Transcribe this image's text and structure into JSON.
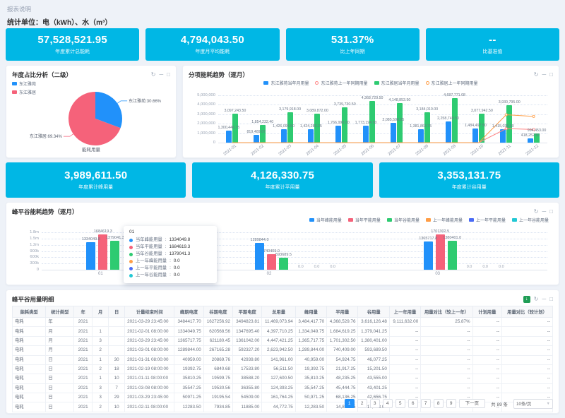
{
  "header": {
    "note": "报表说明",
    "unit_line": "统计单位：电（kWh）、水（m³）"
  },
  "icons": {
    "refresh": "↻",
    "collapse": "─",
    "fullscreen": "□",
    "export": "↓"
  },
  "kpi_top": [
    {
      "value": "57,528,521.95",
      "label": "年度累计总能耗"
    },
    {
      "value": "4,794,043.50",
      "label": "年度月平均能耗"
    },
    {
      "value": "531.37%",
      "label": "比上年同期"
    },
    {
      "value": "--",
      "label": "比基准值"
    }
  ],
  "kpi_mid": [
    {
      "value": "3,989,611.50",
      "label": "年度累计峰用量"
    },
    {
      "value": "4,126,330.75",
      "label": "年度累计平用量"
    },
    {
      "value": "3,353,131.75",
      "label": "年度累计谷用量"
    }
  ],
  "panels": {
    "pie": {
      "title": "年度占比分析（二级）"
    },
    "monthly": {
      "title": "分项能耗趋势（逐月）"
    },
    "fpg": {
      "title": "峰平谷能耗趋势（逐月）"
    },
    "detail": {
      "title": "峰平谷用量明细"
    }
  },
  "colors": {
    "cyan": "#00b7e5",
    "blue": "#2191fa",
    "green": "#2ecb71",
    "pink": "#f5627a",
    "orange": "#ff9d45",
    "redline": "#ff8585",
    "royal": "#4a6bf5",
    "teal": "#22c8d4"
  },
  "chart_data": [
    {
      "type": "pie",
      "title": "年度占比分析（二级）",
      "legend_position": "top-left",
      "series": [
        {
          "name": "东江雅苑",
          "value_pct": 30.66,
          "color": "#2191fa",
          "callout_label": "东江雅苑:30.66%"
        },
        {
          "name": "东江雅居",
          "value_pct": 69.34,
          "color": "#f5627a",
          "callout_label": "东江雅居:69.34%"
        }
      ],
      "bottom_label": "能耗用量"
    },
    {
      "type": "bar",
      "title": "分项能耗趋势（逐月）",
      "categories": [
        "2021-01",
        "2021-02",
        "2021-03",
        "2021-04",
        "2021-05",
        "2021-06",
        "2021-07",
        "2021-08",
        "2021-09",
        "2021-10",
        "2021-11",
        "2021-12"
      ],
      "ylim": [
        0,
        5000000
      ],
      "yticks": [
        "5,000,000",
        "4,000,000",
        "3,000,000",
        "2,000,000",
        "1,000,000",
        "0"
      ],
      "grid": true,
      "legend_position": "top-center",
      "series": [
        {
          "name": "东江雅苑当年月用量",
          "kind": "bar",
          "color": "#2191fa",
          "values": [
            1300446.75,
            819489.07,
            1426095.5,
            1424283.25,
            1766990.0,
            1773194.5,
            2085598.25,
            1381863.75,
            2258749.5,
            1484497.5,
            1415035.5,
            418252.5
          ],
          "labels": [
            "1,300,446.75",
            "819,489.07",
            "1,426,095.50",
            "1,424,283.25",
            "1,766,990.00",
            "1,773,194.50",
            "2,085,598.25",
            "1,381,863.75",
            "2,258,749.50",
            "1,484,497.50",
            "1,415,035.50",
            "418,252.50"
          ]
        },
        {
          "name": "东江雅苑上一年同期用量",
          "kind": "line",
          "color": "#ff8585",
          "values": [
            0,
            0,
            0,
            0,
            0,
            0,
            0,
            0,
            0,
            0,
            1480000,
            1390000
          ],
          "labels": []
        },
        {
          "name": "东江雅居当年月用量",
          "kind": "bar",
          "color": "#2ecb71",
          "values": [
            3097243.5,
            1854232.4,
            3179918.0,
            3089872.0,
            3739730.5,
            4368729.5,
            4148853.5,
            3184010.0,
            4687771.08,
            3077942.5,
            3930795.0,
            994453.0
          ],
          "labels": [
            "3,097,243.50",
            "1,854,232.40",
            "3,179,918.00",
            "3,089,872.00",
            "3,739,730.50",
            "4,368,729.50",
            "4,148,853.50",
            "3,184,010.00",
            "4,687,771.08",
            "3,077,942.50",
            "3,930,795.00",
            "994,453.00"
          ]
        },
        {
          "name": "东江雅居上一年同期用量",
          "kind": "line",
          "color": "#ff9d45",
          "values": [
            0,
            0,
            0,
            0,
            0,
            0,
            0,
            0,
            0,
            0,
            2950000,
            2770000
          ],
          "labels": []
        }
      ]
    },
    {
      "type": "bar",
      "title": "峰平谷能耗趋势（逐月）",
      "categories": [
        "01",
        "02",
        "03"
      ],
      "ylim": [
        0,
        1800000
      ],
      "yticks": [
        "1.8m",
        "1.5m",
        "1.2m",
        "900k",
        "600k",
        "300k",
        "0"
      ],
      "grid": true,
      "legend_position": "top-right",
      "series": [
        {
          "name": "当年峰能用量",
          "kind": "bar",
          "color": "#2191fa",
          "values": [
            1334049.75,
            1289844.0,
            1365717.75
          ],
          "labels": [
            "1334049.8",
            "1289844.0",
            "1365717.8"
          ]
        },
        {
          "name": "当年平能用量",
          "kind": "bar",
          "color": "#f5627a",
          "values": [
            1684619.25,
            740409.0,
            1701302.5
          ],
          "labels": [
            "1684619.3",
            "740409.0",
            "1701302.5"
          ]
        },
        {
          "name": "当年谷能用量",
          "kind": "bar",
          "color": "#2ecb71",
          "values": [
            1379041.25,
            593689.5,
            1380401.0
          ],
          "labels": [
            "1379041.3",
            "593689.5",
            "1380401.0"
          ]
        },
        {
          "name": "上一年峰能用量",
          "kind": "bar",
          "color": "#ff9d45",
          "values": [
            0,
            0,
            0
          ],
          "labels": [
            "0.0",
            "0.0",
            "0.0"
          ]
        },
        {
          "name": "上一年平能用量",
          "kind": "bar",
          "color": "#4a6bf5",
          "values": [
            0,
            0,
            0
          ],
          "labels": [
            "0.0",
            "0.0",
            "0.0"
          ]
        },
        {
          "name": "上一年谷能用量",
          "kind": "bar",
          "color": "#22c8d4",
          "values": [
            0,
            0,
            0
          ],
          "labels": [
            "0.0",
            "0.0",
            "0.0"
          ]
        }
      ]
    }
  ],
  "fpg_tooltip": {
    "title": "01",
    "rows": [
      {
        "label": "当年峰能用量",
        "value": "1334049.8",
        "color": "#2191fa"
      },
      {
        "label": "当年平能用量",
        "value": "1684619.3",
        "color": "#f5627a"
      },
      {
        "label": "当年谷能用量",
        "value": "1379041.3",
        "color": "#2ecb71"
      },
      {
        "label": "上一年峰能用量",
        "value": "0.0",
        "color": "#ff9d45"
      },
      {
        "label": "上一年平能用量",
        "value": "0.0",
        "color": "#4a6bf5"
      },
      {
        "label": "上一年谷能用量",
        "value": "0.0",
        "color": "#22c8d4"
      }
    ]
  },
  "table": {
    "title": "峰平谷用量明细",
    "columns": [
      "能耗类型",
      "统计类型",
      "年",
      "月",
      "日",
      "计量结束时间",
      "峰期电度",
      "谷期电度",
      "平期电度",
      "总用量",
      "峰用量",
      "平用量",
      "谷用量",
      "上一年用量",
      "用量对比（较上一年）",
      "计划用量",
      "用量对比（较计划）"
    ],
    "rows": [
      [
        "电耗",
        "年",
        "2021",
        "",
        "",
        "2021-03-29 23:45:00",
        "3484417.70",
        "1627256.92",
        "3494823.81",
        "11,469,073.94",
        "3,484,417.70",
        "4,368,529.76",
        "3,616,126.48",
        "9,111,632.00",
        "25.87%",
        "--",
        "--"
      ],
      [
        "电耗",
        "月",
        "2021",
        "1",
        "",
        "2021-02-01 08:00:00",
        "1334049.75",
        "620568.56",
        "1347695.40",
        "4,397,710.25",
        "1,334,049.75",
        "1,684,619.25",
        "1,379,041.25",
        "--",
        "--",
        "--",
        "--"
      ],
      [
        "电耗",
        "月",
        "2021",
        "3",
        "",
        "2021-03-29 23:45:00",
        "1365717.75",
        "621180.45",
        "1361042.00",
        "4,447,421.25",
        "1,365,717.75",
        "1,701,302.50",
        "1,380,401.00",
        "--",
        "--",
        "--",
        "--"
      ],
      [
        "电耗",
        "月",
        "2021",
        "2",
        "",
        "2021-03-01 08:00:00",
        "1289844.00",
        "267165.28",
        "592327.20",
        "2,623,942.50",
        "1,289,844.00",
        "740,409.00",
        "593,689.50",
        "--",
        "--",
        "--",
        "--"
      ],
      [
        "电耗",
        "日",
        "2021",
        "1",
        "30",
        "2021-01-31 08:00:00",
        "40959.00",
        "20869.76",
        "42939.80",
        "141,961.00",
        "40,959.00",
        "54,924.75",
        "46,077.25",
        "--",
        "--",
        "--",
        "--"
      ],
      [
        "电耗",
        "日",
        "2021",
        "2",
        "18",
        "2021-02-19 08:00:00",
        "19392.75",
        "6840.68",
        "17533.80",
        "56,511.50",
        "19,392.75",
        "21,917.25",
        "15,201.50",
        "--",
        "--",
        "--",
        "--"
      ],
      [
        "电耗",
        "日",
        "2021",
        "1",
        "10",
        "2021-01-11 08:00:00",
        "35810.25",
        "19599.75",
        "38588.20",
        "127,600.50",
        "35,810.25",
        "48,235.25",
        "43,555.00",
        "--",
        "--",
        "--",
        "--"
      ],
      [
        "电耗",
        "日",
        "2021",
        "3",
        "7",
        "2021-03-08 08:00:00",
        "35547.25",
        "19530.56",
        "36355.80",
        "124,393.25",
        "35,547.25",
        "45,444.75",
        "43,401.25",
        "--",
        "--",
        "--",
        "--"
      ],
      [
        "电耗",
        "日",
        "2021",
        "3",
        "29",
        "2021-03-29 23:45:00",
        "50971.25",
        "19195.54",
        "54509.00",
        "161,764.25",
        "50,971.25",
        "68,136.25",
        "42,656.75",
        "--",
        "--",
        "--",
        "--"
      ],
      [
        "电耗",
        "日",
        "2021",
        "2",
        "10",
        "2021-02-11 08:00:00",
        "12283.50",
        "7934.85",
        "11885.00",
        "44,772.75",
        "12,283.50",
        "14,856.25",
        "17,633.00",
        "--",
        "--",
        "--",
        "--"
      ]
    ]
  },
  "pagination": {
    "pages": [
      "1",
      "2",
      "3",
      "4",
      "5",
      "6",
      "7",
      "8",
      "9"
    ],
    "active": "1",
    "next_label": "下一页",
    "total_label": "共 89 条",
    "page_size": "10条/页"
  }
}
